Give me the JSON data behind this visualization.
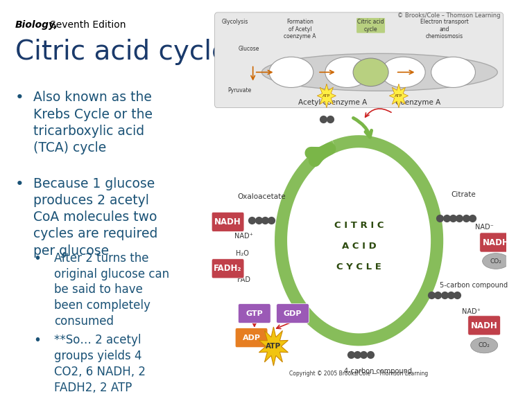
{
  "background_color": "#ffffff",
  "left_panel_bg": "#ffffff",
  "right_panel_bg": "#dde8c0",
  "title_text": "Citric acid cycle",
  "title_color": "#1a3a6b",
  "title_fontsize": 28,
  "header_italic": "Biology,",
  "header_normal": "  Seventh Edition",
  "header_fontsize": 10,
  "bullet_color": "#1a5276",
  "bullet_fontsize": 13.5,
  "bullet1": "Also known as the\nKrebs Cycle or the\ntricarboxylic acid\n(TCA) cycle",
  "bullet2": "Because 1 glucose\nproduces 2 acetyl\nCoA molecules two\ncycles are required\nper glucose",
  "sub_bullet1": "After 2 turns the\noriginal glucose can\nbe said to have\nbeen completely\nconsumed",
  "sub_bullet2": "**So… 2 acetyl\ngroups yields 4\nCO2, 6 NADH, 2\nFADH2, 2 ATP",
  "copyright": "Copyright © 2005 Brooks/Cole — Thomson Learning",
  "green_color": "#7ab648",
  "red_arrow_color": "#cc2222",
  "nadh_box_color": "#c0404a",
  "fadh_box_color": "#c0404a",
  "gtp_box_color": "#9b59b6",
  "gdp_box_color": "#9b59b6",
  "adp_box_color": "#e67e22",
  "atp_star_color": "#f1c40f",
  "co2_circle_color": "#b0b0b0",
  "node_color": "#606060",
  "cycle_label_color": "#2c4a0e",
  "label_color": "#333333",
  "watermark": "© Brooks/Cole – Thomson Learning"
}
